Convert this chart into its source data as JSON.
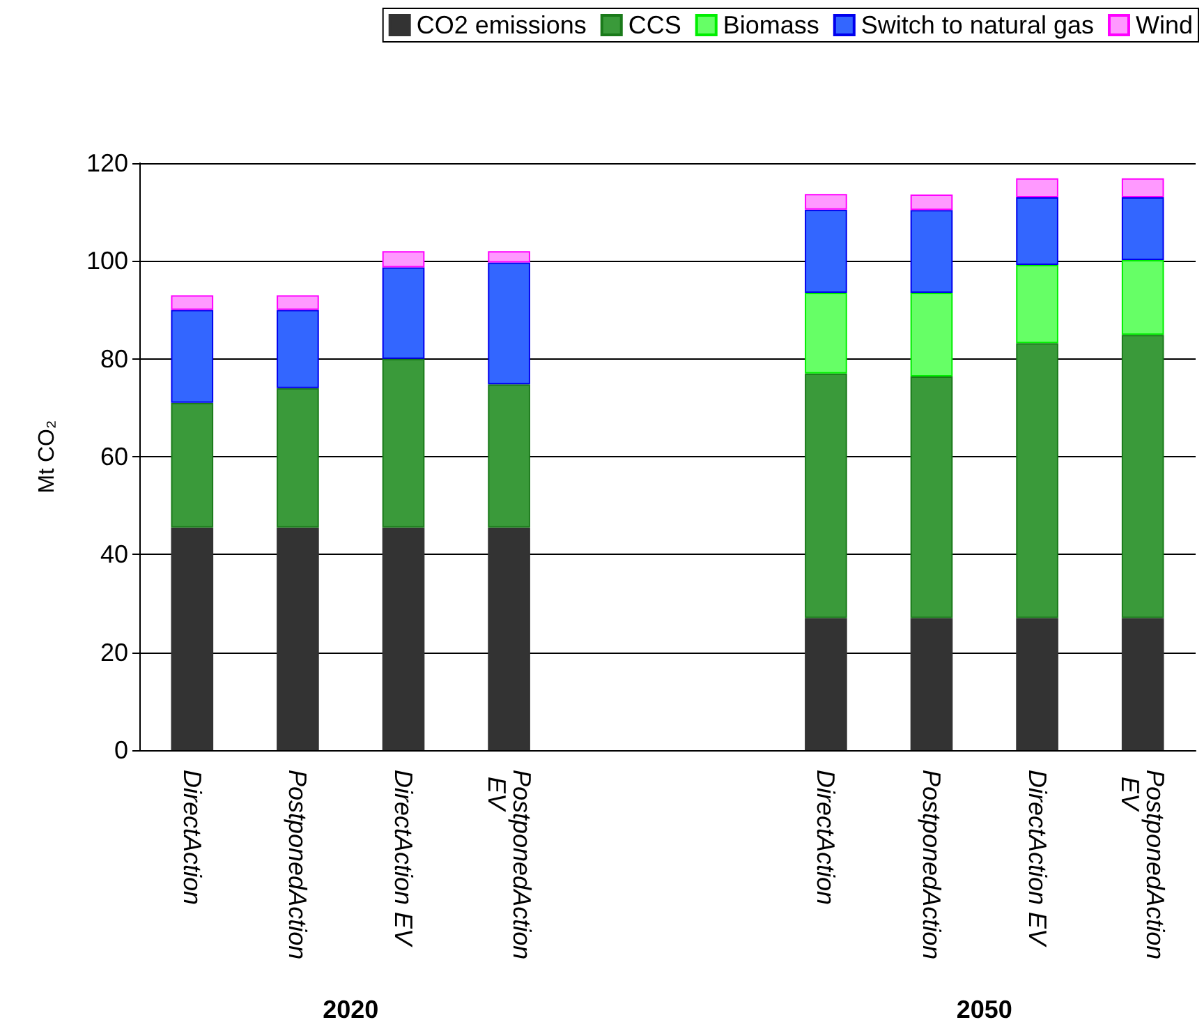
{
  "chart_data": {
    "type": "bar",
    "stacked": true,
    "ylabel": "Mt CO₂",
    "categories": [
      "DirectAction",
      "PostponedAction",
      "DirectAction EV",
      "PostponedAction EV",
      null,
      null,
      "DirectAction",
      "PostponedAction",
      "DirectAction EV",
      "PostponedAction EV"
    ],
    "series": [
      {
        "name": "CO2 emissions",
        "color": "#333333",
        "values": [
          45.5,
          45.5,
          45.5,
          45.5,
          null,
          null,
          27,
          27,
          27,
          27
        ]
      },
      {
        "name": "CCS",
        "color": "#3a9a3a",
        "values": [
          25.5,
          28.5,
          34.5,
          29.3,
          null,
          null,
          50,
          49.4,
          56.2,
          57.9
        ]
      },
      {
        "name": "Biomass",
        "color": "#66ff66",
        "values": [
          null,
          null,
          null,
          null,
          null,
          null,
          16.5,
          17.1,
          16,
          15.3
        ]
      },
      {
        "name": "Switch to natural gas",
        "color": "#3366ff",
        "values": [
          19,
          16,
          18.7,
          24.9,
          null,
          null,
          17,
          16.9,
          13.8,
          12.8
        ]
      },
      {
        "name": "Wind",
        "color": "#ff99ff",
        "values": [
          3,
          3,
          3.3,
          2.3,
          null,
          null,
          3.2,
          3.2,
          3.9,
          3.9
        ]
      }
    ],
    "ylim": [
      0,
      120
    ],
    "yticks": [
      0,
      20,
      40,
      60,
      80,
      100,
      120
    ],
    "grid": "y",
    "legend": "top right",
    "annotations": [
      "2020",
      "2050"
    ]
  }
}
